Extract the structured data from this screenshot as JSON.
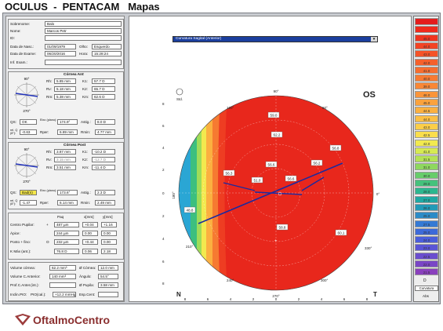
{
  "app_title": "OCULUS  -  PENTACAM   Mapas",
  "patient": {
    "rows": [
      {
        "label": "Sobrenome:",
        "value": "Balo"
      },
      {
        "label": "Nome:",
        "value": "Marcos Petr"
      },
      {
        "label": "ID:",
        "value": ""
      },
      {
        "label": "Data de Nasc.:",
        "value": "01/09/1979"
      },
      {
        "label": "Data de Exame:",
        "value": "06/20/2016"
      },
      {
        "label": "Inf. Exam.:",
        "value": ""
      }
    ],
    "eye_label": "Olho:",
    "eye_value": "Esquerdo",
    "time_label": "Hora:",
    "time_value": "15:28:24"
  },
  "cornea_front": {
    "title": "Córnea Ant",
    "rows": [
      {
        "l1": "Rh:",
        "v1": "5.85 mm",
        "l2": "K1:",
        "v2": "57.7 D"
      },
      {
        "l1": "Rv:",
        "v1": "5.18 mm",
        "l2": "K2:",
        "v2": "65.7 D"
      },
      {
        "l1": "Rm:",
        "v1": "5.38 mm",
        "l2": "Km:",
        "v2": "62.6 D"
      },
      {
        "l1": "QS:",
        "v1": "OK",
        "l2": "Eixo (plano):",
        "v2": "174.9°",
        "l3": "Astig.:",
        "v3": "8.0 D"
      },
      {
        "l1": "rel. Q (8°):",
        "v1": "-0.63",
        "l2": "Rper:",
        "v2": "6.89 mm",
        "l3": "Rmin:",
        "v3": "4.77 mm"
      }
    ],
    "axis_top": "90°",
    "axis_bottom": "270°"
  },
  "cornea_back": {
    "title": "Córnea Post",
    "rows": [
      {
        "l1": "Rh:",
        "v1": "3.87 mm",
        "l2": "K1:",
        "v2": "-10.2 D"
      },
      {
        "l1": "Rv:",
        "v1": "3.15 mm",
        "l2": "K2:",
        "v2": "-12.7 D"
      },
      {
        "l1": "Rm:",
        "v1": "3.51 mm",
        "l2": "Km:",
        "v2": "-11.4 D"
      },
      {
        "l1": "QS:",
        "v1": "Bad(n)",
        "l2": "Eixo (plano):",
        "v2": "173.6°",
        "l3": "Astig.:",
        "v3": "2.3 D"
      },
      {
        "l1": "rel. Q (8°):",
        "v1": "-1.47",
        "l2": "Rper:",
        "v2": "6.14 mm",
        "l3": "Rmin:",
        "v3": "2.49 mm"
      }
    ],
    "axis_top": "90°",
    "axis_bottom": "270°"
  },
  "pupil": {
    "headers": [
      "Paq",
      "x[mm]",
      "y[mm]"
    ],
    "rows": [
      {
        "label": "Centro Pupilar:",
        "mark": "+",
        "v": [
          "487 µm",
          "+0.04",
          "+1.16"
        ]
      },
      {
        "label": "Ápice:",
        "mark": "",
        "v": [
          "244 µm",
          "0.00",
          "0.00"
        ]
      },
      {
        "label": "Ponto + fino:",
        "mark": "O",
        "v": [
          "232 µm",
          "+0.44",
          "0.00"
        ]
      },
      {
        "label": "K Máx (ant.):",
        "mark": "",
        "v": [
          "76.8 D",
          "0.06",
          "2.18"
        ]
      }
    ]
  },
  "volumes": [
    {
      "l1": "Volume córnea:",
      "v1": "62.2 mm³",
      "l2": "Ø Córnea:",
      "v2": "12.0 mm"
    },
    {
      "l1": "Volume C.Anterior:",
      "v1": "140 mm³",
      "l2": "Ângulo:",
      "v2": "54.5°"
    },
    {
      "l1": "Prof.C.Anter.(int.):",
      "v1": "",
      "l2": "Ø Pupila:",
      "v2": "3.58 mm"
    },
    {
      "l1": "Inclin.PIO:",
      "v1": "PIO(cal.):",
      "l2": "+12.2 mmHg",
      "v2": "Esp.Cent:"
    }
  ],
  "map": {
    "dropdown": "Curvatura Sagital (Anterior)",
    "eye": "OS",
    "std_label": "Std.",
    "top_angle": "90°",
    "bottom_angle": "270°",
    "left_angle": "180°",
    "right_angle": "0°",
    "diag_angles": [
      "120°",
      "60°",
      "210°",
      "330°",
      "240°",
      "300°"
    ],
    "nasal": "N",
    "temporal": "T",
    "x_ticks": [
      "8",
      "6",
      "4",
      "2",
      "0",
      "2",
      "4",
      "6",
      "8"
    ],
    "y_ticks": [
      "8",
      "6",
      "4",
      "2",
      "0",
      "2",
      "4",
      "6",
      "8"
    ],
    "values": [
      {
        "t": "59.0",
        "x": 348,
        "y": 146
      },
      {
        "t": "62.2",
        "x": 352,
        "y": 171
      },
      {
        "t": "56.8",
        "x": 427,
        "y": 188
      },
      {
        "t": "56.3",
        "x": 291,
        "y": 220
      },
      {
        "t": "56.6",
        "x": 345,
        "y": 209
      },
      {
        "t": "56.2",
        "x": 403,
        "y": 207
      },
      {
        "t": "51.0",
        "x": 327,
        "y": 229
      },
      {
        "t": "56.6",
        "x": 370,
        "y": 227
      },
      {
        "t": "48.8",
        "x": 241,
        "y": 267
      },
      {
        "t": "58.8",
        "x": 359,
        "y": 289
      },
      {
        "t": "60.1",
        "x": 434,
        "y": 296
      }
    ]
  },
  "legend": {
    "values": [
      "",
      "",
      "45.0",
      "44.0",
      "43.0",
      "42.0",
      "41.0",
      "40.0",
      "39.0",
      "46.0",
      "45.0",
      "44.5",
      "44.0",
      "43.0",
      "42.5",
      "42.0",
      "41.0",
      "31.5",
      "31.0",
      "30.0",
      "29.0",
      "28.0",
      "27.0",
      "26.0",
      "25.0",
      "27.5",
      "25.0",
      "24.0",
      "23.0",
      "22.5",
      "22.0",
      "21.5"
    ],
    "colors": [
      "#e41c1c",
      "#ef2a1c",
      "#f0351f",
      "#f34424",
      "#f55328",
      "#f6602b",
      "#f76d2f",
      "#f87a32",
      "#f98736",
      "#fa9439",
      "#fba23d",
      "#fcb040",
      "#fcbf44",
      "#fcce48",
      "#fade4b",
      "#f2ea4f",
      "#d6ea52",
      "#b4e256",
      "#8ed85e",
      "#67cd6a",
      "#45c27c",
      "#2cb78f",
      "#1fa9a3",
      "#229ab7",
      "#2b8bc7",
      "#357ad5",
      "#3d6ad9",
      "#4a5edb",
      "#5a55d6",
      "#6a4dcf",
      "#7a46c6",
      "#8a40bd"
    ],
    "unit": "D",
    "type": "Curvatura",
    "mode": "Abs"
  },
  "brand": {
    "name": "OftalmoCentro",
    "color": "#8a2e2e"
  }
}
